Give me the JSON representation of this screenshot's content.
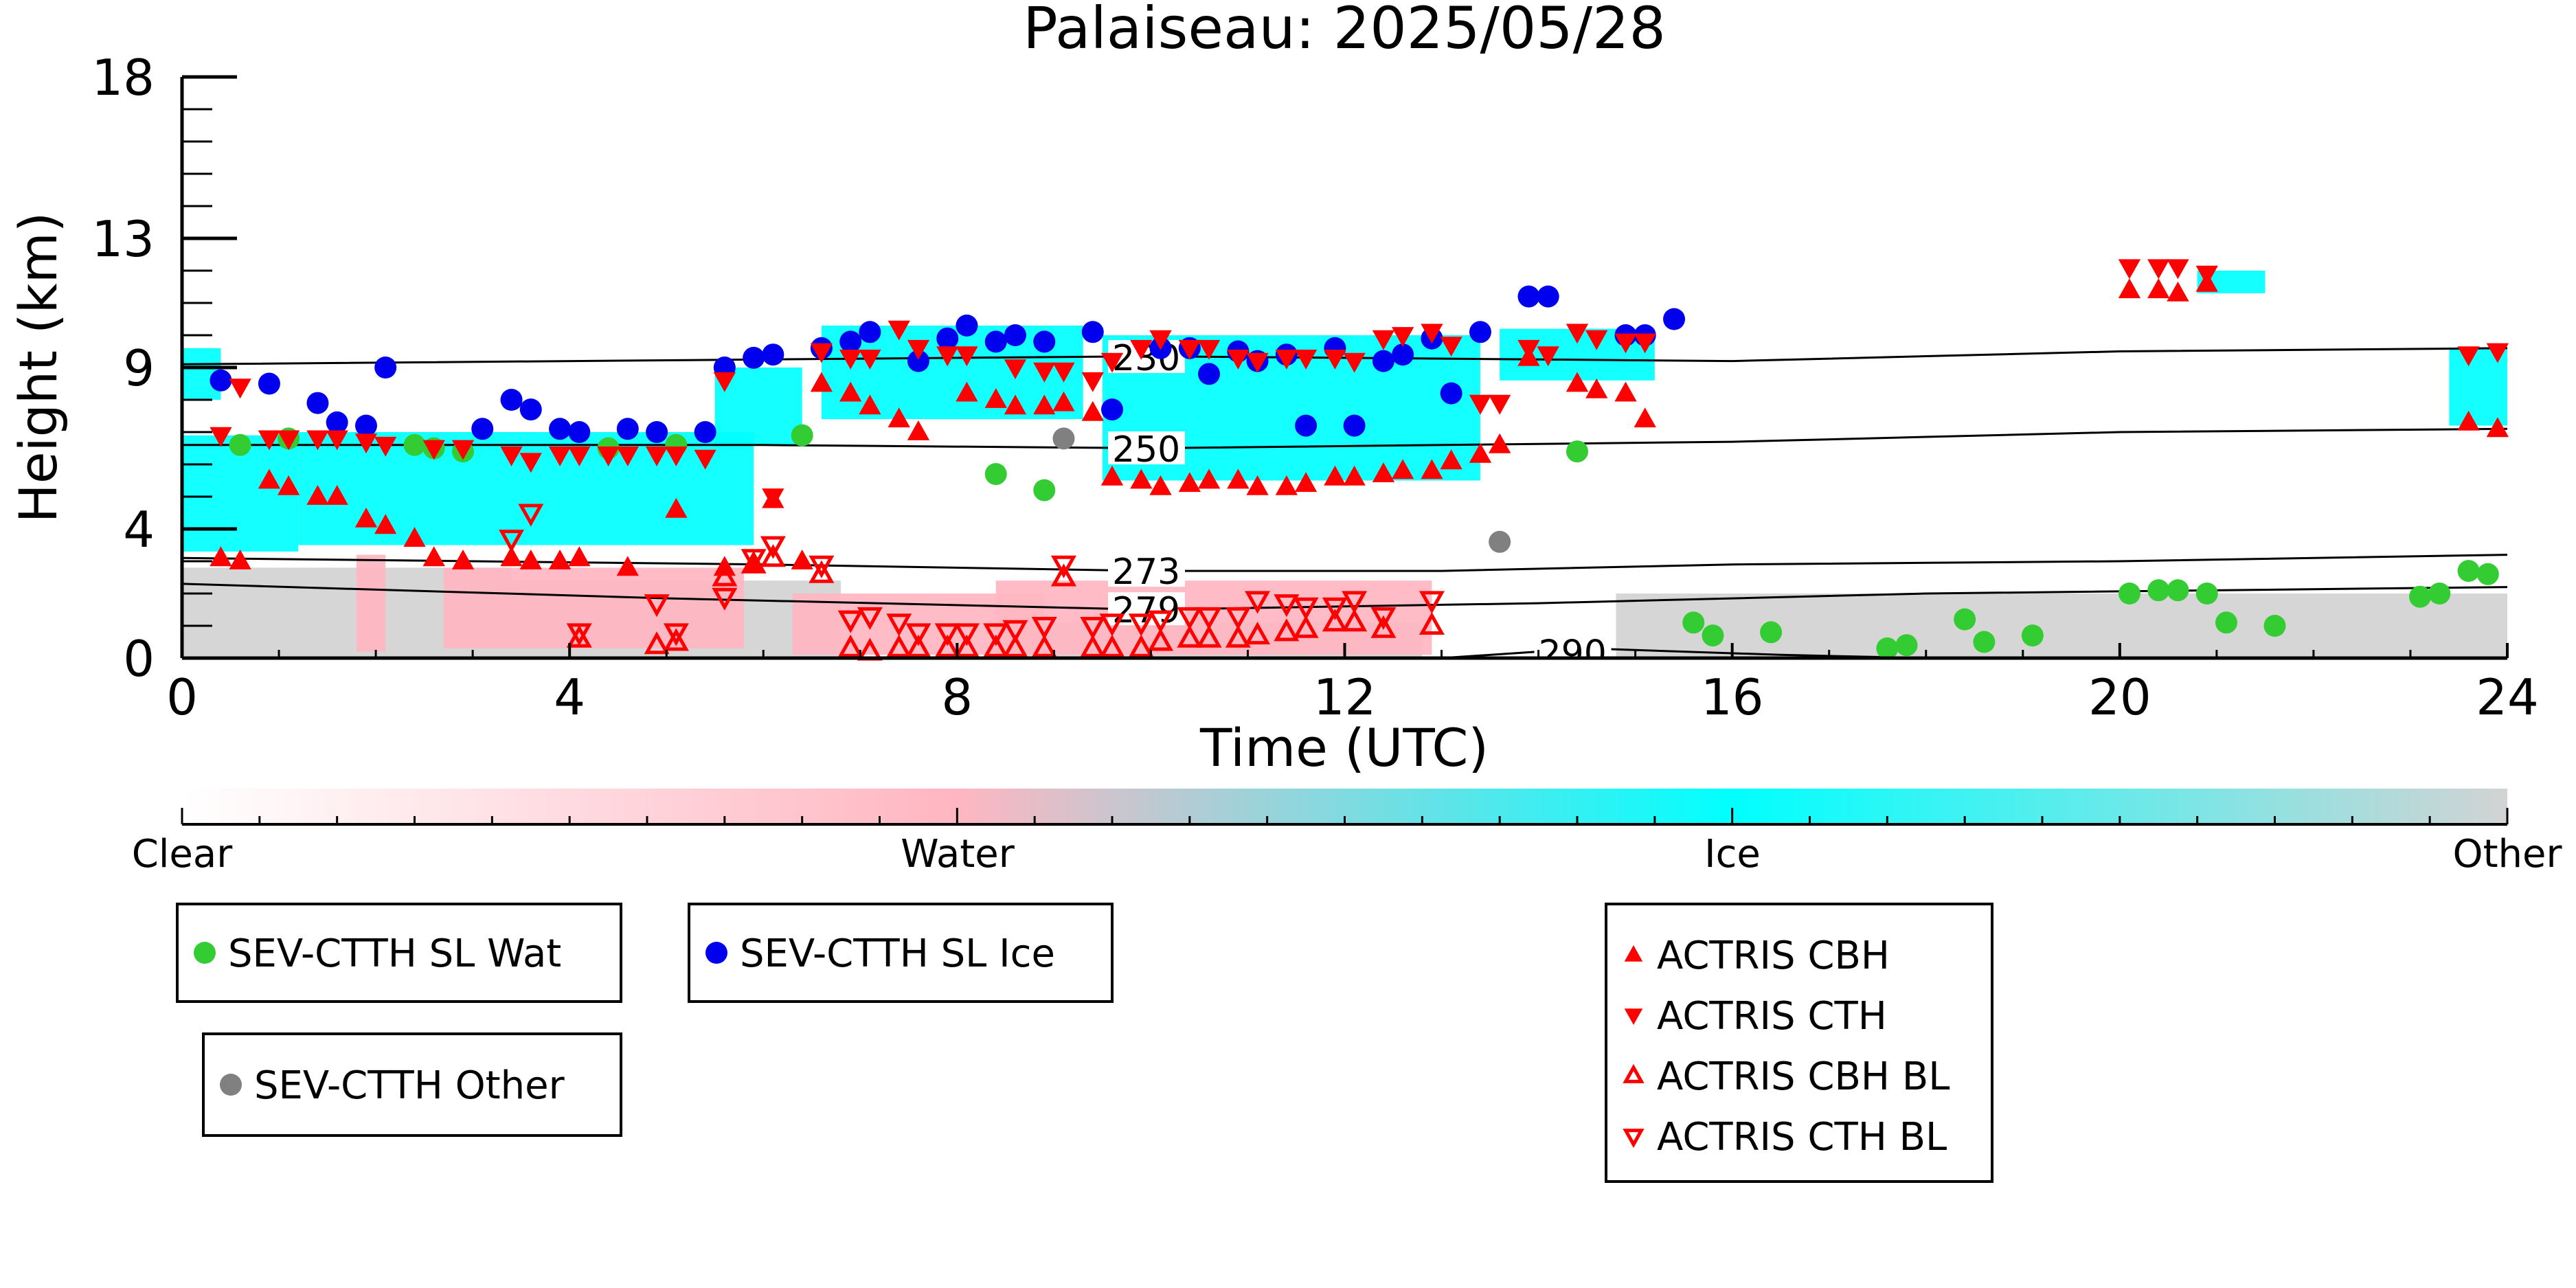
{
  "chart_data": {
    "type": "scatter",
    "title": "Palaiseau: 2025/05/28",
    "xlabel": "Time (UTC)",
    "ylabel": "Height (km)",
    "xlim": [
      0,
      24
    ],
    "ylim": [
      0,
      18
    ],
    "x_ticks": [
      0,
      4,
      8,
      12,
      16,
      20,
      24
    ],
    "y_ticks": [
      0,
      4,
      9,
      13,
      18
    ],
    "colorbar": {
      "labels": [
        "Clear",
        "Water",
        "Ice",
        "Other"
      ],
      "colors": [
        "#ffffff",
        "#ffb6c1",
        "#00ffff",
        "#d3d3d3"
      ]
    },
    "contours": [
      {
        "label": "230",
        "label_x": 9.6,
        "points": [
          [
            0,
            9.1
          ],
          [
            6,
            9.25
          ],
          [
            10,
            9.35
          ],
          [
            16,
            9.2
          ],
          [
            20,
            9.5
          ],
          [
            24,
            9.6
          ]
        ]
      },
      {
        "label": "250",
        "label_x": 9.6,
        "points": [
          [
            0,
            6.6
          ],
          [
            6,
            6.6
          ],
          [
            10,
            6.5
          ],
          [
            16,
            6.7
          ],
          [
            20,
            7.0
          ],
          [
            24,
            7.1
          ]
        ]
      },
      {
        "label": "273",
        "label_x": 9.6,
        "points": [
          [
            0,
            3.1
          ],
          [
            6,
            2.9
          ],
          [
            10,
            2.7
          ],
          [
            13,
            2.7
          ],
          [
            16,
            2.9
          ],
          [
            20,
            3.0
          ],
          [
            24,
            3.2
          ]
        ]
      },
      {
        "label": "279",
        "label_x": 9.6,
        "points": [
          [
            0,
            2.3
          ],
          [
            5,
            1.85
          ],
          [
            10,
            1.5
          ],
          [
            14,
            1.7
          ],
          [
            18,
            2.0
          ],
          [
            24,
            2.2
          ]
        ]
      },
      {
        "label": "290",
        "label_x": 14.0,
        "points": [
          [
            13.0,
            0.0
          ],
          [
            14.5,
            0.3
          ],
          [
            16.5,
            0.1
          ],
          [
            18.0,
            0.0
          ]
        ]
      }
    ],
    "series": [
      {
        "name": "SEV-CTTH SL Wat",
        "color": "#33cc33",
        "marker": "circle",
        "points": [
          [
            0.6,
            6.6
          ],
          [
            1.1,
            6.8
          ],
          [
            2.4,
            6.6
          ],
          [
            2.6,
            6.5
          ],
          [
            2.9,
            6.4
          ],
          [
            4.4,
            6.5
          ],
          [
            5.1,
            6.6
          ],
          [
            6.4,
            6.9
          ],
          [
            8.4,
            5.7
          ],
          [
            8.9,
            5.2
          ],
          [
            14.4,
            6.4
          ],
          [
            15.6,
            1.1
          ],
          [
            15.8,
            0.7
          ],
          [
            16.4,
            0.8
          ],
          [
            17.6,
            0.3
          ],
          [
            17.8,
            0.4
          ],
          [
            18.4,
            1.2
          ],
          [
            18.6,
            0.5
          ],
          [
            19.1,
            0.7
          ],
          [
            20.1,
            2.0
          ],
          [
            20.4,
            2.1
          ],
          [
            20.6,
            2.1
          ],
          [
            20.9,
            2.0
          ],
          [
            21.1,
            1.1
          ],
          [
            21.6,
            1.0
          ],
          [
            23.1,
            1.9
          ],
          [
            23.3,
            2.0
          ],
          [
            23.6,
            2.7
          ],
          [
            23.8,
            2.6
          ]
        ]
      },
      {
        "name": "SEV-CTTH SL Ice",
        "color": "#0000ee",
        "marker": "circle",
        "points": [
          [
            0.4,
            8.6
          ],
          [
            0.9,
            8.5
          ],
          [
            1.4,
            7.9
          ],
          [
            1.6,
            7.3
          ],
          [
            1.9,
            7.2
          ],
          [
            2.1,
            9.0
          ],
          [
            3.1,
            7.1
          ],
          [
            3.4,
            8.0
          ],
          [
            3.6,
            7.7
          ],
          [
            3.9,
            7.1
          ],
          [
            4.1,
            7.0
          ],
          [
            4.6,
            7.1
          ],
          [
            4.9,
            7.0
          ],
          [
            5.4,
            7.0
          ],
          [
            5.6,
            9.0
          ],
          [
            5.9,
            9.3
          ],
          [
            6.1,
            9.4
          ],
          [
            6.6,
            9.6
          ],
          [
            6.9,
            9.8
          ],
          [
            7.1,
            10.1
          ],
          [
            7.6,
            9.2
          ],
          [
            7.9,
            9.9
          ],
          [
            8.1,
            10.3
          ],
          [
            8.4,
            9.8
          ],
          [
            8.6,
            10.0
          ],
          [
            8.9,
            9.8
          ],
          [
            9.4,
            10.1
          ],
          [
            9.6,
            7.7
          ],
          [
            10.1,
            9.6
          ],
          [
            10.4,
            9.6
          ],
          [
            10.6,
            8.8
          ],
          [
            10.9,
            9.5
          ],
          [
            11.1,
            9.2
          ],
          [
            11.4,
            9.4
          ],
          [
            11.6,
            7.2
          ],
          [
            11.9,
            9.6
          ],
          [
            12.1,
            7.2
          ],
          [
            12.4,
            9.2
          ],
          [
            12.6,
            9.4
          ],
          [
            12.9,
            9.9
          ],
          [
            13.1,
            8.2
          ],
          [
            13.4,
            10.1
          ],
          [
            13.9,
            11.2
          ],
          [
            14.1,
            11.2
          ],
          [
            14.9,
            10.0
          ],
          [
            15.1,
            10.0
          ],
          [
            15.4,
            10.5
          ]
        ]
      },
      {
        "name": "SEV-CTTH Other",
        "color": "#808080",
        "marker": "circle",
        "points": [
          [
            9.1,
            6.8
          ],
          [
            13.6,
            3.6
          ]
        ]
      },
      {
        "name": "ACTRIS CBH",
        "color": "#ff0000",
        "marker": "triangle-up",
        "points": [
          [
            0.4,
            3.1
          ],
          [
            0.6,
            3.0
          ],
          [
            0.9,
            5.5
          ],
          [
            1.1,
            5.3
          ],
          [
            1.4,
            5.0
          ],
          [
            1.6,
            5.0
          ],
          [
            1.9,
            4.3
          ],
          [
            2.1,
            4.1
          ],
          [
            2.4,
            3.7
          ],
          [
            2.6,
            3.1
          ],
          [
            2.9,
            3.0
          ],
          [
            3.4,
            3.1
          ],
          [
            3.6,
            3.0
          ],
          [
            3.9,
            3.0
          ],
          [
            4.1,
            3.1
          ],
          [
            4.6,
            2.8
          ],
          [
            5.1,
            4.6
          ],
          [
            5.6,
            2.8
          ],
          [
            5.9,
            2.9
          ],
          [
            6.1,
            4.9
          ],
          [
            6.4,
            3.0
          ],
          [
            6.6,
            8.5
          ],
          [
            6.9,
            8.2
          ],
          [
            7.1,
            7.8
          ],
          [
            7.4,
            7.4
          ],
          [
            7.6,
            7.0
          ],
          [
            8.1,
            8.2
          ],
          [
            8.4,
            8.0
          ],
          [
            8.6,
            7.8
          ],
          [
            8.9,
            7.8
          ],
          [
            9.1,
            7.9
          ],
          [
            9.4,
            7.6
          ],
          [
            9.6,
            5.6
          ],
          [
            9.9,
            5.5
          ],
          [
            10.1,
            5.3
          ],
          [
            10.4,
            5.4
          ],
          [
            10.6,
            5.5
          ],
          [
            10.9,
            5.5
          ],
          [
            11.1,
            5.3
          ],
          [
            11.4,
            5.3
          ],
          [
            11.6,
            5.4
          ],
          [
            11.9,
            5.6
          ],
          [
            12.1,
            5.6
          ],
          [
            12.4,
            5.7
          ],
          [
            12.6,
            5.8
          ],
          [
            12.9,
            5.8
          ],
          [
            13.1,
            6.1
          ],
          [
            13.4,
            6.3
          ],
          [
            13.6,
            6.6
          ],
          [
            13.9,
            9.3
          ],
          [
            14.4,
            8.5
          ],
          [
            14.6,
            8.3
          ],
          [
            14.9,
            8.2
          ],
          [
            15.1,
            7.4
          ],
          [
            20.1,
            11.4
          ],
          [
            20.4,
            11.4
          ],
          [
            20.6,
            11.3
          ],
          [
            20.9,
            11.6
          ],
          [
            23.6,
            7.3
          ],
          [
            23.9,
            7.1
          ]
        ]
      },
      {
        "name": "ACTRIS CTH",
        "color": "#ff0000",
        "marker": "triangle-down",
        "points": [
          [
            0.4,
            6.9
          ],
          [
            0.6,
            8.4
          ],
          [
            0.9,
            6.8
          ],
          [
            1.1,
            6.8
          ],
          [
            1.4,
            6.8
          ],
          [
            1.6,
            6.8
          ],
          [
            1.9,
            6.7
          ],
          [
            2.1,
            6.6
          ],
          [
            2.6,
            6.5
          ],
          [
            2.9,
            6.5
          ],
          [
            3.4,
            6.3
          ],
          [
            3.6,
            6.1
          ],
          [
            3.9,
            6.3
          ],
          [
            4.1,
            6.3
          ],
          [
            4.4,
            6.3
          ],
          [
            4.6,
            6.3
          ],
          [
            4.9,
            6.3
          ],
          [
            5.1,
            6.3
          ],
          [
            5.4,
            6.2
          ],
          [
            5.6,
            8.6
          ],
          [
            6.1,
            5.0
          ],
          [
            6.6,
            9.5
          ],
          [
            6.9,
            9.3
          ],
          [
            7.1,
            9.3
          ],
          [
            7.4,
            10.2
          ],
          [
            7.6,
            9.6
          ],
          [
            7.9,
            9.4
          ],
          [
            8.1,
            9.4
          ],
          [
            8.6,
            9.0
          ],
          [
            8.9,
            8.9
          ],
          [
            9.1,
            8.9
          ],
          [
            9.4,
            8.6
          ],
          [
            9.6,
            9.2
          ],
          [
            9.9,
            9.6
          ],
          [
            10.1,
            9.9
          ],
          [
            10.4,
            9.6
          ],
          [
            10.6,
            9.6
          ],
          [
            10.9,
            9.3
          ],
          [
            11.1,
            9.2
          ],
          [
            11.4,
            9.3
          ],
          [
            11.6,
            9.3
          ],
          [
            11.9,
            9.3
          ],
          [
            12.1,
            9.2
          ],
          [
            12.4,
            9.9
          ],
          [
            12.6,
            10.0
          ],
          [
            12.9,
            10.1
          ],
          [
            13.1,
            9.7
          ],
          [
            13.4,
            7.9
          ],
          [
            13.6,
            7.9
          ],
          [
            13.9,
            9.6
          ],
          [
            14.1,
            9.4
          ],
          [
            14.4,
            10.1
          ],
          [
            14.6,
            9.9
          ],
          [
            14.9,
            9.8
          ],
          [
            15.1,
            9.8
          ],
          [
            20.1,
            12.1
          ],
          [
            20.4,
            12.1
          ],
          [
            20.6,
            12.1
          ],
          [
            20.9,
            11.9
          ],
          [
            23.6,
            9.4
          ],
          [
            23.9,
            9.5
          ]
        ]
      },
      {
        "name": "ACTRIS CBH BL",
        "color": "#ff0000",
        "marker": "triangle-up-open",
        "points": [
          [
            4.1,
            0.6
          ],
          [
            4.9,
            0.4
          ],
          [
            5.1,
            0.5
          ],
          [
            5.6,
            2.5
          ],
          [
            5.9,
            2.9
          ],
          [
            6.1,
            3.1
          ],
          [
            6.6,
            2.6
          ],
          [
            6.9,
            0.3
          ],
          [
            7.1,
            0.2
          ],
          [
            7.4,
            0.3
          ],
          [
            7.6,
            0.3
          ],
          [
            7.9,
            0.3
          ],
          [
            8.1,
            0.3
          ],
          [
            8.4,
            0.3
          ],
          [
            8.6,
            0.3
          ],
          [
            8.9,
            0.3
          ],
          [
            9.1,
            2.5
          ],
          [
            9.4,
            0.3
          ],
          [
            9.6,
            0.3
          ],
          [
            9.9,
            0.3
          ],
          [
            10.1,
            0.5
          ],
          [
            10.4,
            0.6
          ],
          [
            10.6,
            0.6
          ],
          [
            10.9,
            0.6
          ],
          [
            11.1,
            0.7
          ],
          [
            11.4,
            0.8
          ],
          [
            11.6,
            0.9
          ],
          [
            11.9,
            1.1
          ],
          [
            12.1,
            1.1
          ],
          [
            12.4,
            0.9
          ],
          [
            12.9,
            1.0
          ]
        ]
      },
      {
        "name": "ACTRIS CTH BL",
        "color": "#ff0000",
        "marker": "triangle-down-open",
        "points": [
          [
            3.4,
            3.7
          ],
          [
            3.6,
            4.5
          ],
          [
            4.1,
            0.8
          ],
          [
            4.9,
            1.7
          ],
          [
            5.1,
            0.8
          ],
          [
            5.6,
            1.9
          ],
          [
            5.9,
            3.1
          ],
          [
            6.1,
            3.5
          ],
          [
            6.6,
            2.9
          ],
          [
            6.9,
            1.2
          ],
          [
            7.1,
            1.3
          ],
          [
            7.4,
            1.1
          ],
          [
            7.6,
            0.8
          ],
          [
            7.9,
            0.8
          ],
          [
            8.1,
            0.8
          ],
          [
            8.4,
            0.8
          ],
          [
            8.6,
            0.9
          ],
          [
            8.9,
            1.0
          ],
          [
            9.1,
            2.9
          ],
          [
            9.4,
            1.0
          ],
          [
            9.6,
            1.1
          ],
          [
            9.9,
            1.1
          ],
          [
            10.1,
            1.2
          ],
          [
            10.4,
            1.3
          ],
          [
            10.6,
            1.3
          ],
          [
            10.9,
            1.3
          ],
          [
            11.1,
            1.8
          ],
          [
            11.4,
            1.7
          ],
          [
            11.6,
            1.6
          ],
          [
            11.9,
            1.6
          ],
          [
            12.1,
            1.8
          ],
          [
            12.4,
            1.3
          ],
          [
            12.9,
            1.8
          ]
        ]
      }
    ],
    "legend": {
      "boxes": [
        [
          "SEV-CTTH SL Wat"
        ],
        [
          "SEV-CTTH SL Ice"
        ],
        [
          "SEV-CTTH Other"
        ],
        [
          "ACTRIS CBH",
          "ACTRIS CTH",
          "ACTRIS CBH BL",
          "ACTRIS CTH BL"
        ]
      ]
    },
    "grid": false
  }
}
